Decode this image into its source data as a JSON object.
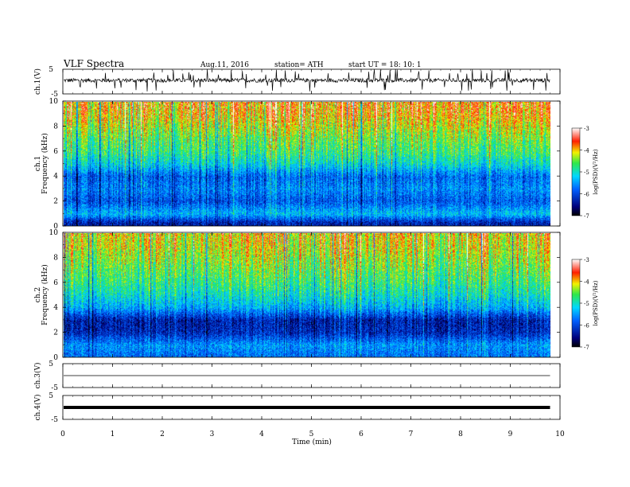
{
  "header": {
    "title": "VLF  Spectra",
    "date": "Aug.11, 2016",
    "station": "station= ATH",
    "start_ut": "start  UT  =    18: 10: 1"
  },
  "colors": {
    "low": "#00007a",
    "mid": "#00c8ff",
    "green": "#2ee84a",
    "yellow": "#f2f200",
    "high": "#ff1e00",
    "top": "#ffffff",
    "trace": "#000000"
  },
  "chart_data": [
    {
      "type": "line",
      "id": "ch1-waveform",
      "ylabel": "ch.1(V)",
      "ylim": [
        -5,
        5
      ],
      "yticks": [
        "5",
        "-5"
      ],
      "x": [
        0,
        9.8
      ],
      "values": [
        0.5,
        0.5
      ]
    },
    {
      "type": "heatmap",
      "id": "ch1-spectrogram",
      "ylabel": "ch.1\nFrequency (kHz)",
      "ylabel_lines": [
        "ch.1",
        "Frequency  (kHz)"
      ],
      "ylim": [
        0,
        10
      ],
      "yticks": [
        "0",
        "2",
        "4",
        "6",
        "8",
        "10"
      ],
      "xlim": [
        0,
        9.8
      ],
      "colorbar": {
        "label": "log(PSD)(V²/Hz)",
        "range": [
          -7,
          -3
        ],
        "ticks": [
          "-3",
          "-4",
          "-5",
          "-6",
          "-7"
        ]
      },
      "profile": [
        {
          "freq_khz": 0.3,
          "log_psd": -6.3
        },
        {
          "freq_khz": 1.0,
          "log_psd": -5.3
        },
        {
          "freq_khz": 2.0,
          "log_psd": -5.9
        },
        {
          "freq_khz": 3.0,
          "log_psd": -5.6
        },
        {
          "freq_khz": 4.0,
          "log_psd": -5.8
        },
        {
          "freq_khz": 5.0,
          "log_psd": -5.1
        },
        {
          "freq_khz": 6.0,
          "log_psd": -4.7
        },
        {
          "freq_khz": 7.0,
          "log_psd": -4.5
        },
        {
          "freq_khz": 8.0,
          "log_psd": -4.2
        },
        {
          "freq_khz": 9.0,
          "log_psd": -3.9
        },
        {
          "freq_khz": 10.0,
          "log_psd": -3.8
        }
      ]
    },
    {
      "type": "heatmap",
      "id": "ch2-spectrogram",
      "ylabel": "ch.2\nFrequency (kHz)",
      "ylabel_lines": [
        "ch.2",
        "Frequency  (kHz)"
      ],
      "ylim": [
        0,
        10
      ],
      "yticks": [
        "0",
        "2",
        "4",
        "6",
        "8",
        "10"
      ],
      "xlim": [
        0,
        9.8
      ],
      "colorbar": {
        "label": "log(PSD)(V²/Hz)",
        "range": [
          -7,
          -3
        ],
        "ticks": [
          "-3",
          "-4",
          "-5",
          "-6",
          "-7"
        ]
      },
      "profile": [
        {
          "freq_khz": 0.3,
          "log_psd": -5.7
        },
        {
          "freq_khz": 1.0,
          "log_psd": -5.5
        },
        {
          "freq_khz": 2.0,
          "log_psd": -6.2
        },
        {
          "freq_khz": 3.0,
          "log_psd": -6.3
        },
        {
          "freq_khz": 4.0,
          "log_psd": -5.4
        },
        {
          "freq_khz": 5.0,
          "log_psd": -5.0
        },
        {
          "freq_khz": 6.0,
          "log_psd": -4.7
        },
        {
          "freq_khz": 7.0,
          "log_psd": -4.5
        },
        {
          "freq_khz": 8.0,
          "log_psd": -4.3
        },
        {
          "freq_khz": 9.0,
          "log_psd": -4.1
        },
        {
          "freq_khz": 10.0,
          "log_psd": -4.0
        }
      ]
    },
    {
      "type": "line",
      "id": "ch3-waveform",
      "ylabel": "ch.3(V)",
      "ylim": [
        -5,
        5
      ],
      "yticks": [
        "5",
        "-5"
      ],
      "x": [
        0,
        9.8
      ],
      "values": [
        0,
        0
      ]
    },
    {
      "type": "line",
      "id": "ch4-waveform",
      "ylabel": "ch.4(V)",
      "ylim": [
        -5,
        5
      ],
      "yticks": [
        "5",
        "-5"
      ],
      "x": [
        0,
        9.8
      ],
      "values": [
        0,
        0
      ]
    }
  ],
  "xaxis": {
    "label": "Time  (min)",
    "ticks": [
      "0",
      "1",
      "2",
      "3",
      "4",
      "5",
      "6",
      "7",
      "8",
      "9",
      "10"
    ],
    "xlim": [
      0,
      10
    ]
  }
}
